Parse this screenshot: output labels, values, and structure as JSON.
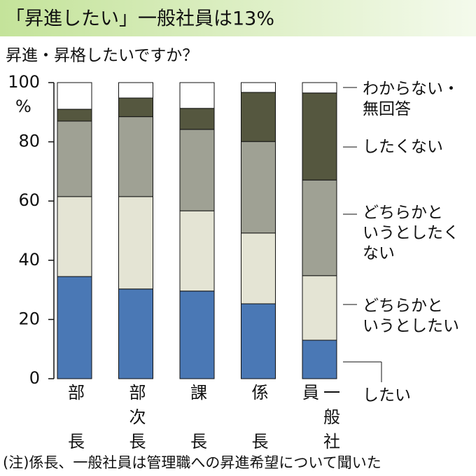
{
  "chart_data": {
    "type": "stacked_bar",
    "title": "「昇進したい」一般社員は13%",
    "subtitle": "昇進・昇格したいですか？",
    "note": "(注)係長、一般社員は管理職への昇進希望について聞いた",
    "y_unit": "%",
    "categories": [
      "部長",
      "部次長",
      "課長",
      "係長",
      "一般社員"
    ],
    "ylim": [
      0,
      100
    ],
    "yticks": [
      0,
      20,
      40,
      60,
      80,
      100
    ],
    "series": [
      {
        "name": "したい",
        "color": "#4a78b5",
        "values": [
          34.5,
          30.3,
          29.6,
          25.3,
          13
        ]
      },
      {
        "name": "どちらかと\nいうとしたい",
        "color": "#e4e4d4",
        "values": [
          27,
          31.2,
          27.1,
          23.9,
          21.8
        ]
      },
      {
        "name": "どちらかと\nいうとしたく\nない",
        "color": "#9fa194",
        "values": [
          25.5,
          27,
          27.5,
          30.9,
          32.3
        ]
      },
      {
        "name": "したくない",
        "color": "#55573f",
        "values": [
          4,
          6.3,
          7.1,
          16.6,
          29.4
        ]
      },
      {
        "name": "わからない・\n無回答",
        "color": "#ffffff",
        "values": [
          9,
          5.2,
          8.7,
          3.3,
          3.5
        ]
      }
    ]
  }
}
